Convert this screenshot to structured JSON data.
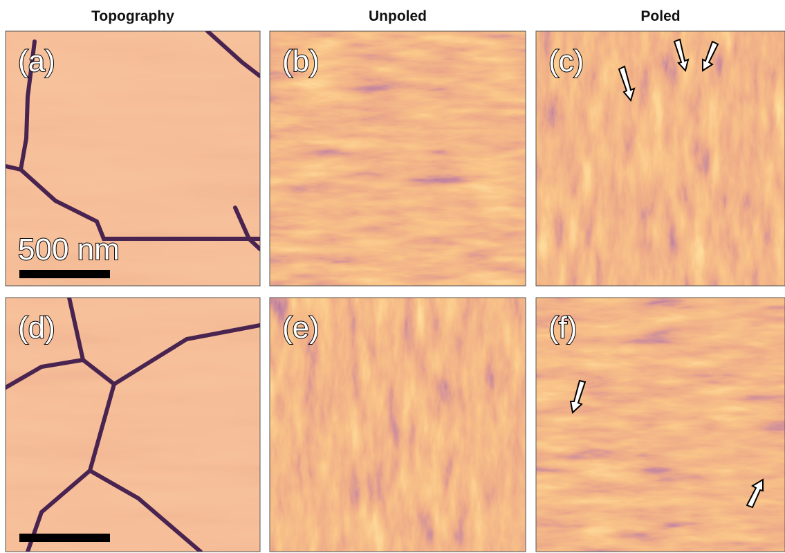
{
  "column_headers": [
    "Topography",
    "Unpoled",
    "Poled"
  ],
  "panels": [
    {
      "label": "(a)"
    },
    {
      "label": "(b)"
    },
    {
      "label": "(c)"
    },
    {
      "label": "(d)"
    },
    {
      "label": "(e)"
    },
    {
      "label": "(f)"
    }
  ],
  "scale_bar": "500 nm"
}
